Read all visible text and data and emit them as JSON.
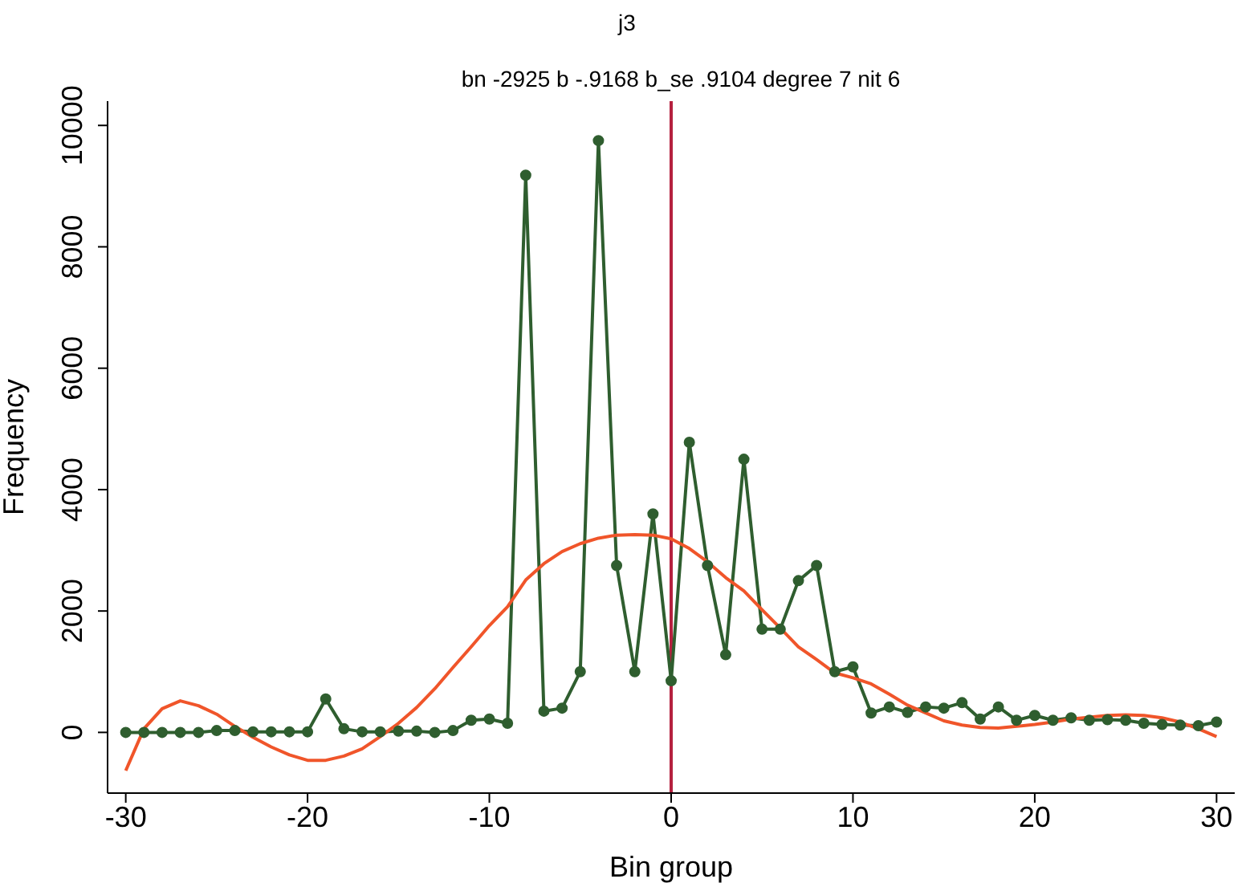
{
  "chart_data": {
    "type": "line",
    "title": "j3",
    "subtitle": "bn -2925 b -.9168 b_se .9104 degree 7 nit 6",
    "xlabel": "Bin group",
    "ylabel": "Frequency",
    "x": [
      -30,
      -29,
      -28,
      -27,
      -26,
      -25,
      -24,
      -23,
      -22,
      -21,
      -20,
      -19,
      -18,
      -17,
      -16,
      -15,
      -14,
      -13,
      -12,
      -11,
      -10,
      -9,
      -8,
      -7,
      -6,
      -5,
      -4,
      -3,
      -2,
      -1,
      0,
      1,
      2,
      3,
      4,
      5,
      6,
      7,
      8,
      9,
      10,
      11,
      12,
      13,
      14,
      15,
      16,
      17,
      18,
      19,
      20,
      21,
      22,
      23,
      24,
      25,
      26,
      27,
      28,
      29,
      30
    ],
    "series": [
      {
        "color": "#2f5e2f",
        "marker": "circle",
        "values": [
          0,
          0,
          0,
          0,
          0,
          30,
          30,
          10,
          10,
          10,
          10,
          550,
          60,
          10,
          10,
          20,
          20,
          0,
          30,
          200,
          220,
          150,
          9180,
          350,
          400,
          1000,
          9750,
          2750,
          1000,
          3600,
          850,
          4780,
          2750,
          1280,
          4500,
          1700,
          1700,
          2500,
          2750,
          1000,
          1080,
          320,
          420,
          330,
          420,
          400,
          490,
          220,
          420,
          200,
          280,
          200,
          240,
          200,
          210,
          200,
          150,
          130,
          120,
          110,
          170
        ]
      },
      {
        "color": "#f0552a",
        "marker": "none",
        "values": [
          -630,
          60,
          390,
          520,
          440,
          300,
          100,
          -80,
          -240,
          -370,
          -460,
          -460,
          -390,
          -270,
          -70,
          150,
          410,
          720,
          1070,
          1410,
          1760,
          2070,
          2510,
          2780,
          2980,
          3110,
          3200,
          3250,
          3260,
          3250,
          3190,
          3030,
          2810,
          2550,
          2330,
          2020,
          1720,
          1410,
          1200,
          980,
          900,
          800,
          630,
          450,
          320,
          190,
          120,
          80,
          70,
          100,
          130,
          170,
          220,
          250,
          280,
          290,
          280,
          240,
          170,
          60,
          -70
        ]
      }
    ],
    "ref_lines": [
      {
        "axis": "x",
        "value": 0,
        "color": "#b5213f"
      }
    ],
    "xlim": [
      -31,
      31
    ],
    "xticks": [
      -30,
      -20,
      -10,
      0,
      10,
      20,
      30
    ],
    "ylim": [
      -1000,
      10400
    ],
    "yticks": [
      0,
      2000,
      4000,
      6000,
      8000,
      10000
    ]
  }
}
